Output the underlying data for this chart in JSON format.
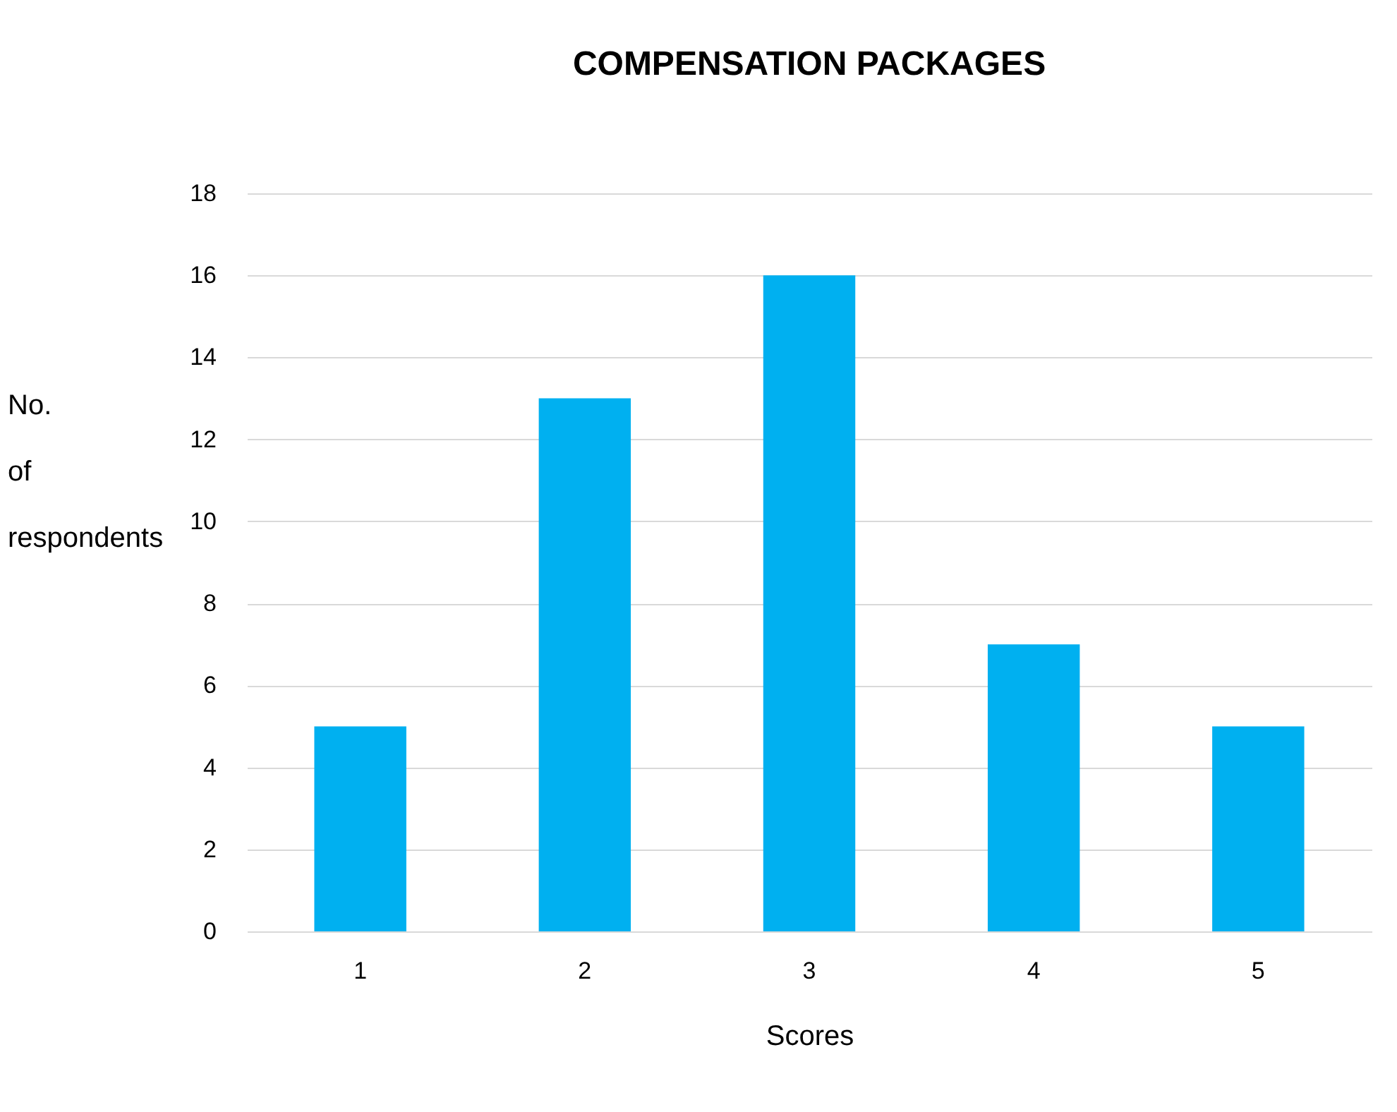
{
  "chart_data": {
    "type": "bar",
    "title": "COMPENSATION PACKAGES",
    "xlabel": "Scores",
    "ylabel": "No. of respondents",
    "categories": [
      "1",
      "2",
      "3",
      "4",
      "5"
    ],
    "values": [
      5,
      13,
      16,
      7,
      5
    ],
    "color": "#00b0f0",
    "ylim": [
      0,
      18
    ],
    "yticks": [
      0,
      2,
      4,
      6,
      8,
      10,
      12,
      14,
      16,
      18
    ],
    "grid": "y"
  }
}
